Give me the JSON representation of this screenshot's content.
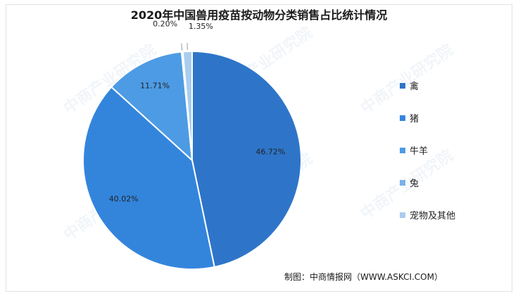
{
  "chart_data": {
    "type": "pie",
    "title": "2020年中国兽用疫苗按动物分类销售占比统计情况",
    "categories": [
      "禽",
      "猪",
      "牛羊",
      "兔",
      "宠物及其他"
    ],
    "values": [
      46.72,
      40.02,
      11.71,
      0.2,
      1.35
    ],
    "value_labels": [
      "46.72%",
      "40.02%",
      "11.71%",
      "0.20%",
      "1.35%"
    ],
    "colors": [
      "#2e75c9",
      "#3385dc",
      "#4d9be4",
      "#78b2e8",
      "#a9cdef"
    ],
    "legend_position": "right"
  },
  "source": "制图：中商情报网（WWW.ASKCI.COM）",
  "watermark": "中商产业研究院"
}
